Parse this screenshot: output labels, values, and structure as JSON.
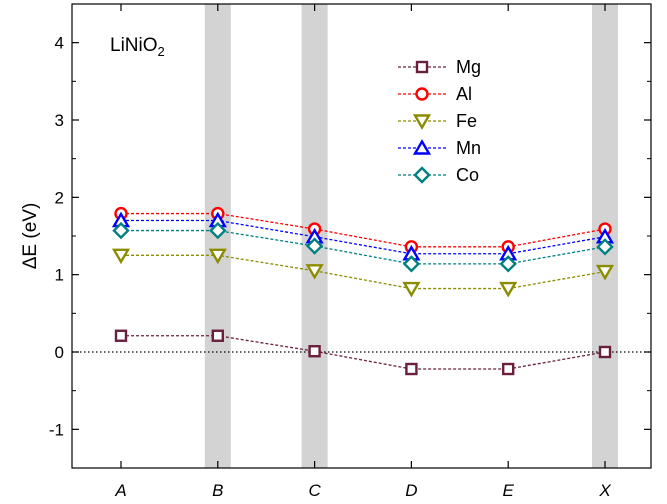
{
  "chart_data": {
    "type": "line",
    "title": "",
    "annotation": {
      "main": "LiNiO",
      "subscript": "2"
    },
    "xlabel": "",
    "ylabel": "ΔE (eV)",
    "x": [
      "A",
      "B",
      "C",
      "D",
      "E",
      "X"
    ],
    "highlighted_x": [
      "B",
      "C",
      "X"
    ],
    "ylim": [
      -1.5,
      4.5
    ],
    "yticks": [
      -1,
      0,
      1,
      2,
      3,
      4
    ],
    "reference_line": 0,
    "legend_position": "upper-right",
    "series": [
      {
        "name": "Mg",
        "marker": "square",
        "color": "#6b1f3f",
        "values": [
          0.21,
          0.21,
          0.01,
          -0.22,
          -0.22,
          0.0
        ]
      },
      {
        "name": "Al",
        "marker": "circle",
        "color": "#ff0000",
        "values": [
          1.79,
          1.79,
          1.59,
          1.36,
          1.36,
          1.59
        ]
      },
      {
        "name": "Fe",
        "marker": "triangle-down",
        "color": "#8c8c00",
        "values": [
          1.25,
          1.25,
          1.05,
          0.82,
          0.82,
          1.04
        ]
      },
      {
        "name": "Mn",
        "marker": "triangle-up",
        "color": "#0000ff",
        "values": [
          1.7,
          1.7,
          1.49,
          1.27,
          1.27,
          1.49
        ]
      },
      {
        "name": "Co",
        "marker": "diamond",
        "color": "#008080",
        "values": [
          1.57,
          1.57,
          1.37,
          1.14,
          1.14,
          1.36
        ]
      }
    ]
  }
}
